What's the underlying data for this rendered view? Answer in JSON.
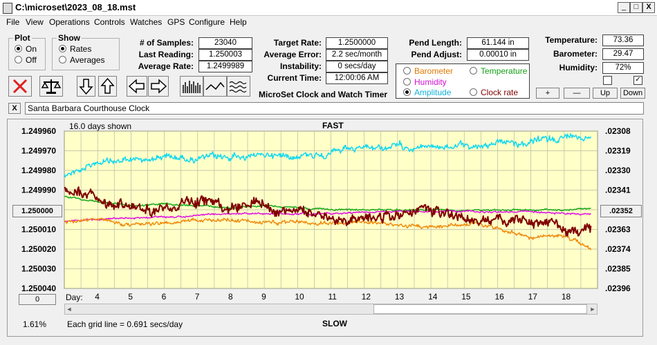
{
  "window": {
    "title": "C:\\microset\\2023_08_18.mst",
    "min_label": "_",
    "max_label": "□",
    "close_label": "X"
  },
  "menu": [
    "File",
    "View",
    "Operations",
    "Controls",
    "Watches",
    "GPS",
    "Configure",
    "Help"
  ],
  "plot_group": {
    "title": "Plot",
    "options": [
      "On",
      "Off"
    ],
    "selected": "On"
  },
  "show_group": {
    "title": "Show",
    "options": [
      "Rates",
      "Averages"
    ],
    "selected": "Rates"
  },
  "stats": [
    {
      "label": "# of Samples:",
      "value": "23040"
    },
    {
      "label": "Last Reading:",
      "value": "1.250003"
    },
    {
      "label": "Average Rate:",
      "value": "1.2499989"
    }
  ],
  "rates": [
    {
      "label": "Target Rate:",
      "value": "1.2500000"
    },
    {
      "label": "Average Error:",
      "value": "2.2 sec/month"
    },
    {
      "label": "Instability:",
      "value": "0 secs/day"
    },
    {
      "label": "Current Time:",
      "value": "12:00:06 AM"
    }
  ],
  "app_name": "MicroSet Clock and Watch Timer",
  "pend": [
    {
      "label": "Pend Length:",
      "value": "61.144 in"
    },
    {
      "label": "Pend Adjust:",
      "value": "0.00010 in"
    }
  ],
  "sensor_options": [
    {
      "label": "Barometer",
      "color": "#e07800"
    },
    {
      "label": "Temperature",
      "color": "#12a012"
    },
    {
      "label": "Humidity",
      "color": "#d010d0"
    },
    {
      "label": "Amplitude",
      "color": "#10b0d8"
    },
    {
      "label": "Clock rate",
      "color": "#800000"
    }
  ],
  "sensor_selected": "Amplitude",
  "env": [
    {
      "label": "Temperature:",
      "value": "73.36"
    },
    {
      "label": "Barometer:",
      "value": "29.47"
    },
    {
      "label": "Humidity:",
      "value": "72%"
    }
  ],
  "checkboxes": [
    false,
    true
  ],
  "small_buttons": [
    "+",
    "—",
    "Up",
    "Down"
  ],
  "clock_name": "Santa Barbara Courthouse Clock",
  "close_clock_label": "X",
  "chart": {
    "days_shown": "16.0 days shown",
    "top_label": "FAST",
    "bottom_label": "SLOW",
    "center_button": "1.250000",
    "right_center_button": ".02352",
    "zero_button": "0",
    "percent": "1.61%",
    "grid_note": "Each grid line = 0.691 secs/day",
    "day_prefix": "Day:",
    "scroll_left": "◄",
    "scroll_right": "►"
  },
  "chart_data": {
    "type": "line",
    "x_range": [
      3,
      19
    ],
    "x_ticks": [
      4,
      5,
      6,
      7,
      8,
      9,
      10,
      11,
      12,
      13,
      14,
      15,
      16,
      17,
      18
    ],
    "y_left_ticks": [
      "1.249960",
      "1.249970",
      "1.249980",
      "1.249990",
      "1.250000",
      "1.250010",
      "1.250020",
      "1.250030",
      "1.250040"
    ],
    "y_left_range": [
      1.25004,
      1.24996
    ],
    "y_right_ticks": [
      ".02308",
      ".02319",
      ".02330",
      ".02341",
      ".02352",
      ".02363",
      ".02374",
      ".02385",
      ".02396"
    ],
    "y_right_range": [
      0.02396,
      0.02308
    ],
    "background": "#ffffc8",
    "grid": true,
    "series": [
      {
        "name": "Amplitude",
        "color": "#10d8f0",
        "width": 1.5,
        "noise": 0.6,
        "x": [
          3,
          4,
          5,
          6,
          7,
          8,
          9,
          10,
          11,
          12,
          13,
          14,
          15,
          16,
          17,
          18,
          18.8
        ],
        "values": [
          1.249982,
          1.249976,
          1.249975,
          1.249973,
          1.249974,
          1.249973,
          1.249972,
          1.249972,
          1.249971,
          1.249969,
          1.249968,
          1.249968,
          1.249968,
          1.249966,
          1.249966,
          1.249963,
          1.249962
        ]
      },
      {
        "name": "Temperature",
        "color": "#18a818",
        "width": 1.5,
        "noise": 0.15,
        "x": [
          3,
          4,
          5,
          6,
          7,
          8,
          9,
          10,
          11,
          12,
          13,
          14,
          15,
          16,
          17,
          18,
          18.8
        ],
        "values": [
          1.249993,
          1.249996,
          1.249998,
          1.249997,
          1.249998,
          1.249999,
          1.249998,
          1.249999,
          1.25,
          1.25,
          1.25,
          1.25,
          1.25,
          1.25,
          1.25,
          1.25,
          1.249999
        ]
      },
      {
        "name": "Humidity",
        "color": "#e010e0",
        "width": 1.5,
        "noise": 0.15,
        "x": [
          3,
          4,
          5,
          6,
          7,
          8,
          9,
          10,
          11,
          12,
          13,
          14,
          15,
          16,
          17,
          18,
          18.8
        ],
        "values": [
          1.250006,
          1.250005,
          1.250004,
          1.250004,
          1.250003,
          1.250002,
          1.250002,
          1.250002,
          1.250002,
          1.250001,
          1.250001,
          1.250001,
          1.250001,
          1.250001,
          1.250001,
          1.250002,
          1.250002
        ]
      },
      {
        "name": "Barometer",
        "color": "#f08c10",
        "width": 1.5,
        "noise": 0.35,
        "x": [
          3,
          4,
          5,
          6,
          7,
          8,
          9,
          10,
          11,
          12,
          13,
          14,
          15,
          16,
          17,
          18,
          18.8
        ],
        "values": [
          1.250006,
          1.250005,
          1.250008,
          1.250007,
          1.250005,
          1.250005,
          1.250007,
          1.250006,
          1.250007,
          1.250006,
          1.250008,
          1.250009,
          1.250007,
          1.250009,
          1.250014,
          1.250014,
          1.25002
        ]
      },
      {
        "name": "Clock rate",
        "color": "#800000",
        "width": 2,
        "noise": 1.0,
        "x": [
          3,
          4,
          5,
          6,
          7,
          8,
          9,
          10,
          11,
          12,
          13,
          14,
          15,
          16,
          17,
          18,
          18.8
        ],
        "values": [
          1.249989,
          1.249995,
          1.249998,
          1.249999,
          1.249996,
          1.249999,
          1.249998,
          1.250001,
          1.250005,
          1.250004,
          1.250003,
          1.250002,
          1.250004,
          1.250006,
          1.250007,
          1.250008,
          1.250011
        ]
      }
    ]
  }
}
